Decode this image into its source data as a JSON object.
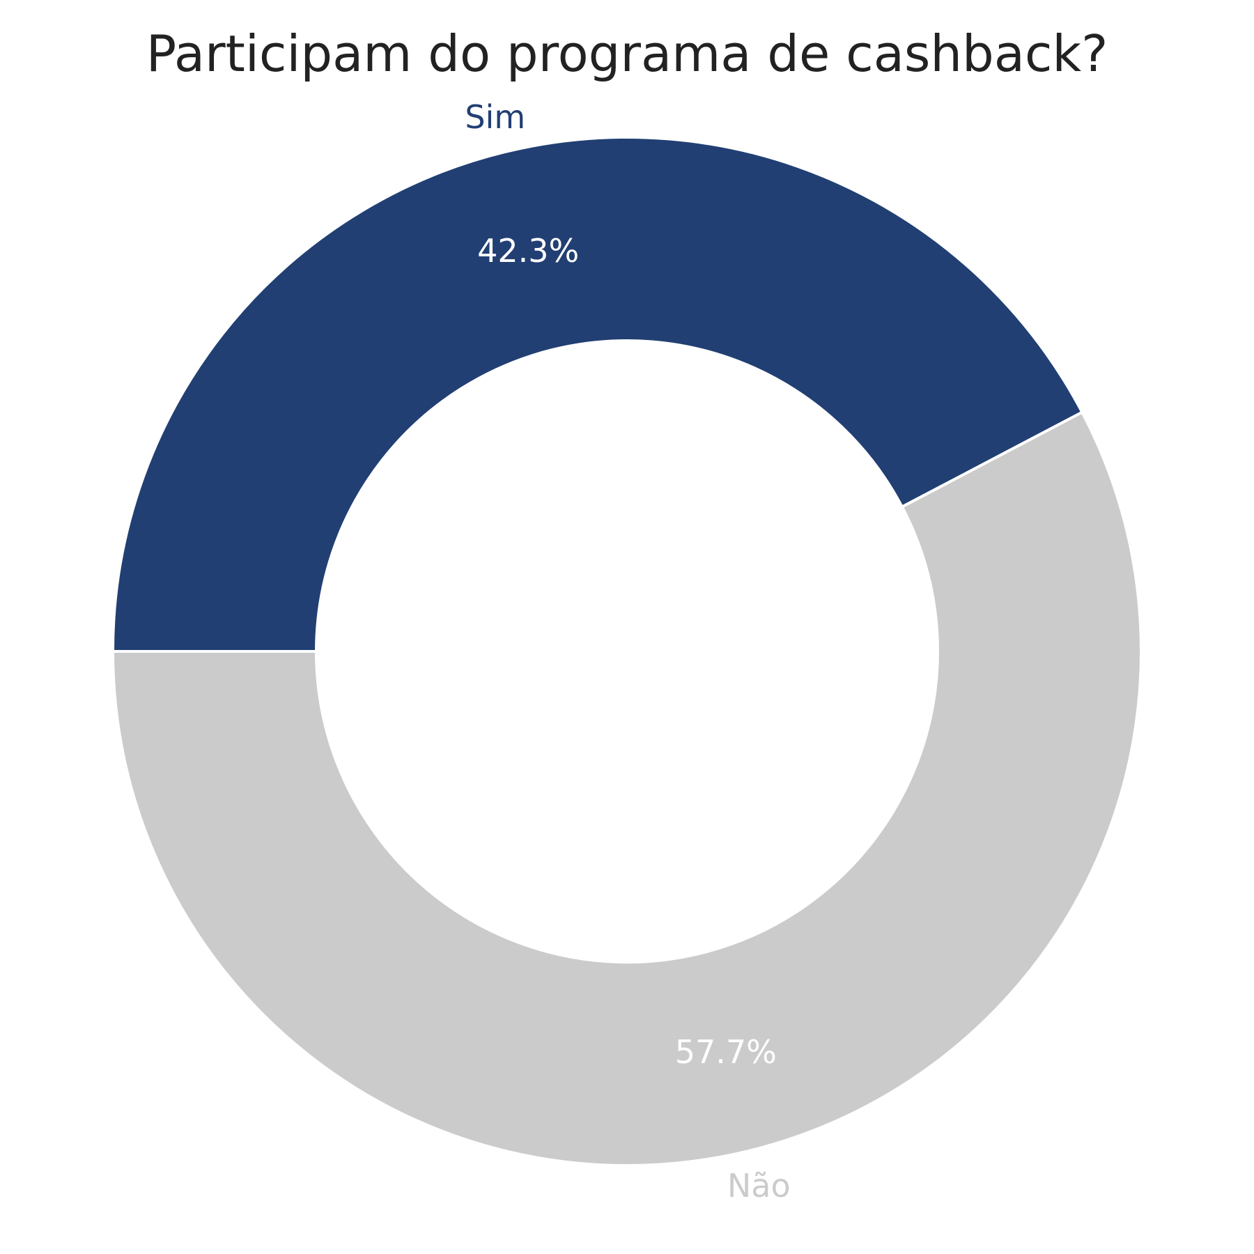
{
  "chart_data": {
    "type": "pie",
    "title": "Participam do programa de cashback?",
    "donut": true,
    "start_angle_deg": 180,
    "direction": "clockwise",
    "slices": [
      {
        "label": "Sim",
        "value": 42.3,
        "value_label": "42.3%",
        "color": "#213f73"
      },
      {
        "label": "Não",
        "value": 57.7,
        "value_label": "57.7%",
        "color": "#cbcbcb"
      }
    ],
    "legend": "none"
  }
}
